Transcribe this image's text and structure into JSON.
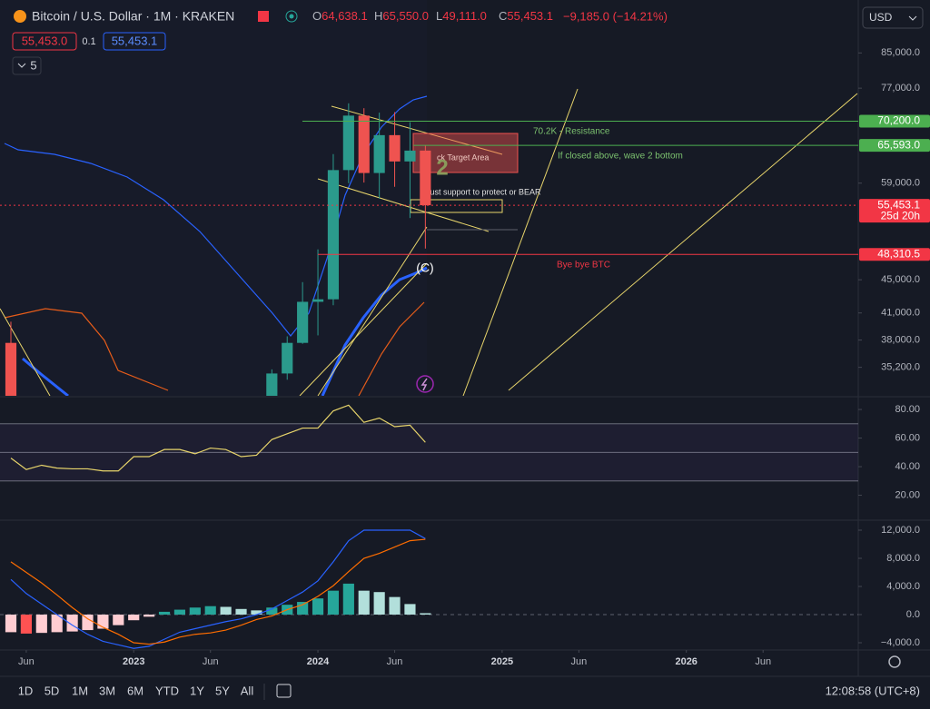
{
  "header": {
    "symbol": "Bitcoin / U.S. Dollar · 1M · KRAKEN",
    "ohlc": [
      {
        "key": "O",
        "value": "64,638.1"
      },
      {
        "key": "H",
        "value": "65,550.0"
      },
      {
        "key": "L",
        "value": "49,111.0"
      },
      {
        "key": "C",
        "value": "55,453.1"
      }
    ],
    "change": "−9,185.0 (−14.21%)",
    "sell": "55,453.0",
    "spread": "0.1",
    "buy": "55,453.1",
    "indicators": "5",
    "currency": "USD"
  },
  "annotations": {
    "resistance": "70.2K - Resistance",
    "wave2": "If closed above, wave 2 bottom",
    "bye": "Bye bye BTC",
    "wave_c": "(C)",
    "target": "ck Target Area",
    "support": "Must support to protect or BEAR",
    "two": "2"
  },
  "toolbar": {
    "ranges": [
      "1D",
      "5D",
      "1M",
      "3M",
      "6M",
      "YTD",
      "1Y",
      "5Y",
      "All"
    ],
    "clock": "12:08:58 (UTC+8)"
  },
  "chart_data": [
    {
      "type": "candlestick",
      "log": true,
      "x": [
        0,
        1,
        2,
        3,
        4,
        5,
        6,
        7,
        8,
        9,
        10,
        11,
        12,
        13,
        14,
        15,
        16,
        17,
        18,
        19,
        20,
        21,
        22,
        23,
        24,
        25,
        26,
        27
      ],
      "open": [
        37700,
        null,
        null,
        null,
        null,
        null,
        null,
        null,
        null,
        null,
        null,
        null,
        null,
        null,
        null,
        null,
        null,
        27000,
        34600,
        37700,
        42300,
        42600,
        61200,
        71300,
        60700,
        67500,
        62700,
        64638.1
      ],
      "high": [
        40000,
        null,
        null,
        null,
        null,
        null,
        null,
        null,
        null,
        null,
        null,
        null,
        null,
        null,
        null,
        null,
        null,
        35000,
        38400,
        44700,
        49000,
        64000,
        73800,
        72800,
        71900,
        72000,
        70000,
        65550
      ],
      "low": [
        26700,
        null,
        null,
        null,
        null,
        null,
        null,
        null,
        null,
        null,
        null,
        null,
        null,
        null,
        null,
        null,
        null,
        26900,
        34000,
        37600,
        38500,
        41900,
        59000,
        59100,
        56500,
        58400,
        53500,
        49111
      ],
      "close": [
        31800,
        null,
        null,
        null,
        null,
        null,
        null,
        null,
        null,
        null,
        null,
        null,
        null,
        null,
        null,
        null,
        null,
        34600,
        37700,
        42300,
        42600,
        61200,
        71300,
        60700,
        67500,
        62700,
        64638.1,
        55453.1
      ],
      "up_color": "#2b9a8c",
      "down_color": "#ef5350",
      "xlim": [
        -0.71,
        55.2
      ],
      "ylim": [
        32500,
        98600
      ],
      "yticks": [
        {
          "value": 85000,
          "label": "85,000.0"
        },
        {
          "value": 77000,
          "label": "77,000.0"
        },
        {
          "value": 59000,
          "label": "59,000.0"
        },
        {
          "value": 45000,
          "label": "45,000.0"
        },
        {
          "value": 41000,
          "label": "41,000.0"
        },
        {
          "value": 38000,
          "label": "38,000.0"
        },
        {
          "value": 35200,
          "label": "35,200.0"
        }
      ],
      "price_lines": [
        {
          "value": 70200,
          "label": "70,200.0",
          "color": "#4caf50"
        },
        {
          "value": 65593,
          "label": "65,593.0",
          "color": "#4caf50"
        },
        {
          "value": 48310.5,
          "label": "48,310.5",
          "color": "#f23645"
        },
        {
          "value": 55453.1,
          "label": "55,453.1",
          "color": "#f23645",
          "countdown": "25d 20h"
        }
      ]
    },
    {
      "type": "line",
      "x": [
        0,
        1,
        2,
        3,
        4,
        5,
        6,
        7,
        8,
        9,
        10,
        11,
        12,
        13,
        14,
        15,
        16,
        17,
        18,
        19,
        20,
        21,
        22,
        23,
        24,
        25,
        26,
        27
      ],
      "series": [
        {
          "name": "RSI",
          "color": "#e8d56b",
          "values": [
            46,
            38,
            41,
            39,
            38.5,
            38.5,
            37,
            37,
            47,
            47,
            52,
            52,
            49,
            53,
            52,
            47,
            48,
            59,
            63,
            67,
            67,
            79,
            83,
            71,
            74,
            68,
            69,
            57
          ]
        }
      ],
      "levels": [
        70,
        50,
        30
      ],
      "xlim": [
        -0.71,
        55.2
      ],
      "ylim": [
        3.2,
        88.3
      ],
      "yticks": [
        {
          "value": 80,
          "label": "80.00"
        },
        {
          "value": 60,
          "label": "60.00"
        },
        {
          "value": 40,
          "label": "40.00"
        },
        {
          "value": 20,
          "label": "20.00"
        }
      ]
    },
    {
      "type": "macd",
      "x": [
        0,
        1,
        2,
        3,
        4,
        5,
        6,
        7,
        8,
        9,
        10,
        11,
        12,
        13,
        14,
        15,
        16,
        17,
        18,
        19,
        20,
        21,
        22,
        23,
        24,
        25,
        26,
        27
      ],
      "histogram": [
        -2500,
        -2700,
        -2600,
        -2500,
        -2400,
        -2200,
        -2000,
        -1500,
        -800,
        -300,
        400,
        700,
        1000,
        1200,
        1100,
        800,
        600,
        1000,
        1400,
        1800,
        2300,
        3400,
        4400,
        3400,
        3200,
        2500,
        1500,
        200
      ],
      "colors": {
        "pos_up": "#26a69a",
        "pos_down": "#b2dfdb",
        "neg_down": "#ff5252",
        "neg_up": "#ffcdd2"
      },
      "series": [
        {
          "name": "MACD",
          "color": "#2962ff",
          "values": [
            5000,
            3000,
            1500,
            0,
            -1500,
            -2800,
            -3800,
            -4300,
            -4800,
            -4500,
            -3500,
            -2500,
            -2000,
            -1500,
            -1000,
            -600,
            0,
            800,
            2000,
            3200,
            4800,
            7500,
            10500,
            12000,
            12000,
            12000,
            12000,
            10800
          ]
        },
        {
          "name": "Signal",
          "color": "#ff6d00",
          "values": [
            7500,
            6000,
            4500,
            2800,
            1000,
            -600,
            -1800,
            -2800,
            -4000,
            -4200,
            -3900,
            -3200,
            -2800,
            -2600,
            -2200,
            -1500,
            -700,
            -200,
            700,
            1400,
            2600,
            4100,
            6100,
            8000,
            8700,
            9600,
            10500,
            10700
          ]
        }
      ],
      "levels": [
        0
      ],
      "xlim": [
        -0.71,
        55.2
      ],
      "ylim": [
        -5030,
        13290
      ],
      "yticks": [
        {
          "value": 12000,
          "label": "12,000.0"
        },
        {
          "value": 8000,
          "label": "8,000.0"
        },
        {
          "value": 4000,
          "label": "4,000.0"
        },
        {
          "value": 0,
          "label": "0.0"
        },
        {
          "value": -4000,
          "label": "−4,000.0"
        }
      ],
      "xticks": [
        {
          "value": 1,
          "label": "Jun"
        },
        {
          "value": 8,
          "label": "2023"
        },
        {
          "value": 13,
          "label": "Jun"
        },
        {
          "value": 20,
          "label": "2024"
        },
        {
          "value": 25,
          "label": "Jun"
        },
        {
          "value": 32,
          "label": "2025"
        },
        {
          "value": 37,
          "label": "Jun"
        },
        {
          "value": 44,
          "label": "2026"
        },
        {
          "value": 49,
          "label": "Jun"
        }
      ]
    }
  ]
}
